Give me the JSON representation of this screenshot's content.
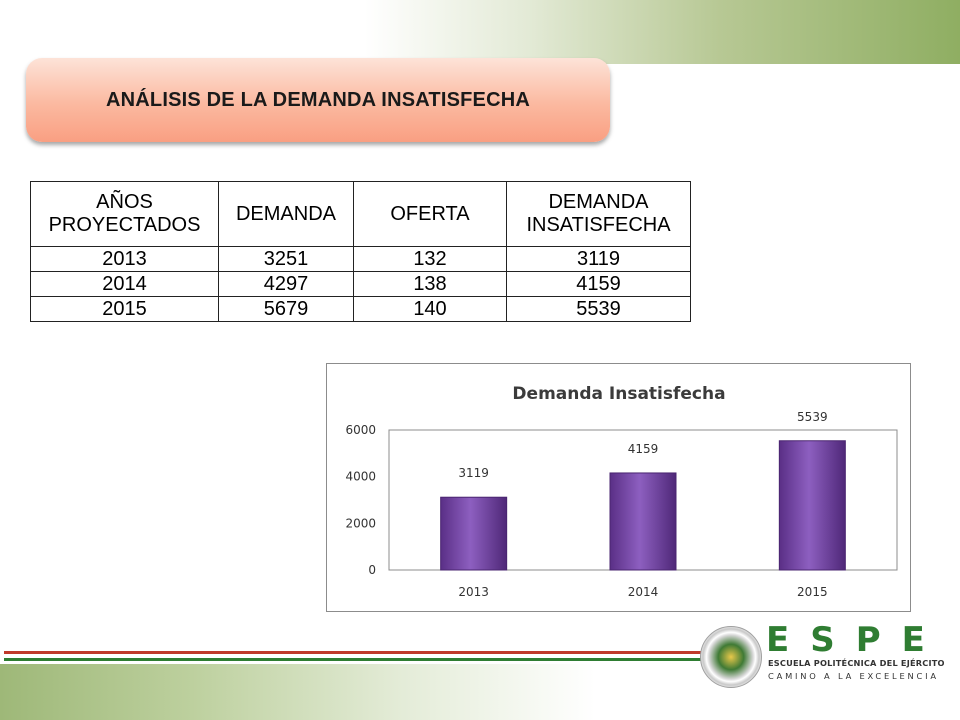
{
  "slide": {
    "title": "ANÁLISIS DE LA DEMANDA INSATISFECHA"
  },
  "table": {
    "headers": [
      "AÑOS PROYECTADOS",
      "DEMANDA",
      "OFERTA",
      "DEMANDA INSATISFECHA"
    ],
    "rows": [
      [
        "2013",
        "3251",
        "132",
        "3119"
      ],
      [
        "2014",
        "4297",
        "138",
        "4159"
      ],
      [
        "2015",
        "5679",
        "140",
        "5539"
      ]
    ]
  },
  "chart_data": {
    "type": "bar",
    "title": "Demanda Insatisfecha",
    "categories": [
      "2013",
      "2014",
      "2015"
    ],
    "values": [
      3119,
      4159,
      5539
    ],
    "data_labels": [
      "3119",
      "4159",
      "5539"
    ],
    "yticks": [
      "0",
      "2000",
      "4000",
      "6000"
    ],
    "ylim": [
      0,
      6000
    ],
    "xlabel": "",
    "ylabel": "",
    "grid": false,
    "legend": "none",
    "bar_color": "#7b4aa8"
  },
  "logo": {
    "letters": "ESPE",
    "line1": "ESCUELA POLITÉCNICA DEL EJÉRCITO",
    "line2": "CAMINO A LA EXCELENCIA"
  },
  "colors": {
    "accent_green": "#2f7d32",
    "stripe_red": "#c0392b",
    "stripe_green": "#2e7d32"
  }
}
